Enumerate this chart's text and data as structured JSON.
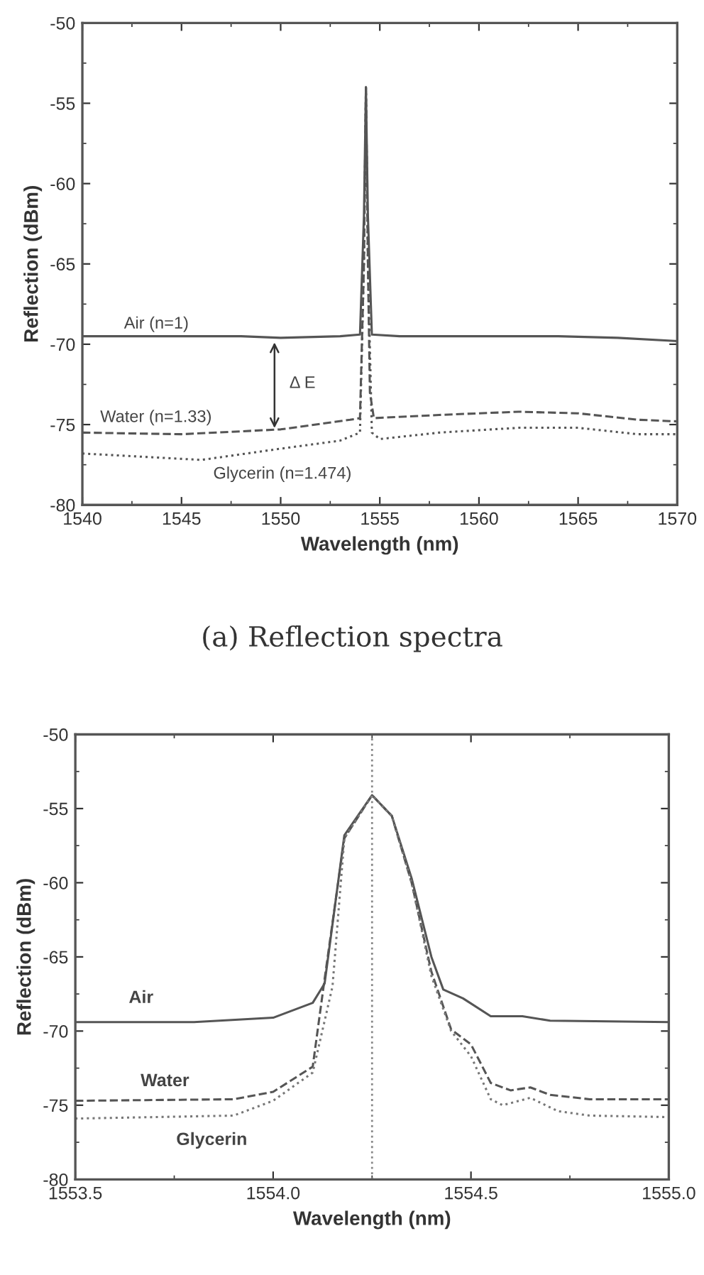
{
  "chart_data": [
    {
      "type": "line",
      "xlabel": "Wavelength (nm)",
      "ylabel": "Reflection (dBm)",
      "xlim": [
        1540,
        1570
      ],
      "xticks": [
        1540,
        1545,
        1550,
        1555,
        1560,
        1565,
        1570
      ],
      "ylim": [
        -80,
        -50
      ],
      "yticks": [
        -80,
        -75,
        -70,
        -65,
        -60,
        -55,
        -50
      ],
      "grid": false,
      "legend": false,
      "marker": "none",
      "series": [
        {
          "name": "Air (n=1)",
          "color": "#555555",
          "line_style": "solid",
          "x": [
            1540,
            1548,
            1550,
            1553,
            1554.0,
            1554.2,
            1554.3,
            1554.4,
            1554.6,
            1556,
            1564,
            1567,
            1570
          ],
          "values": [
            -69.5,
            -69.5,
            -69.6,
            -69.5,
            -69.4,
            -62,
            -54,
            -62,
            -69.4,
            -69.5,
            -69.5,
            -69.6,
            -69.8
          ]
        },
        {
          "name": "Water (n=1.33)",
          "color": "#555555",
          "line_style": "dashed",
          "x": [
            1540,
            1545,
            1550,
            1553.5,
            1554.0,
            1554.2,
            1554.3,
            1554.4,
            1554.5,
            1554.7,
            1558,
            1562,
            1565,
            1568,
            1570
          ],
          "values": [
            -75.5,
            -75.6,
            -75.3,
            -74.7,
            -74.6,
            -65,
            -54,
            -65,
            -73,
            -74.6,
            -74.4,
            -74.2,
            -74.3,
            -74.7,
            -74.8
          ]
        },
        {
          "name": "Glycerin (n=1.474)",
          "color": "#555555",
          "line_style": "dotted",
          "x": [
            1540,
            1543,
            1546,
            1550,
            1553,
            1554.0,
            1554.2,
            1554.3,
            1554.4,
            1554.6,
            1555,
            1558,
            1562,
            1565,
            1568,
            1570
          ],
          "values": [
            -76.8,
            -77.0,
            -77.2,
            -76.5,
            -76.0,
            -75.5,
            -65,
            -54,
            -65,
            -75.5,
            -75.9,
            -75.5,
            -75.2,
            -75.2,
            -75.6,
            -75.6
          ]
        }
      ],
      "annotations": [
        "Δ E",
        "(a) Reflection spectra"
      ]
    },
    {
      "type": "line",
      "xlabel": "Wavelength (nm)",
      "ylabel": "Reflection (dBm)",
      "xlim": [
        1553.5,
        1555.0
      ],
      "xticks": [
        {
          "value": 1553.5,
          "label": "1553.5"
        },
        {
          "value": 1554.0,
          "label": "1554.0"
        },
        {
          "value": 1554.5,
          "label": "1554.5"
        },
        {
          "value": 1555.0,
          "label": "1555.0"
        }
      ],
      "ylim": [
        -80,
        -50
      ],
      "yticks": [
        -80,
        -75,
        -70,
        -65,
        -60,
        -55,
        -50
      ],
      "grid": false,
      "legend": false,
      "marker": "none",
      "ref_lines": [
        {
          "axis": "x",
          "value": 1554.25,
          "color": "#888888",
          "line_style": "dotted"
        }
      ],
      "series": [
        {
          "name": "Air",
          "color": "#555555",
          "line_style": "solid",
          "x": [
            1553.5,
            1553.8,
            1554.0,
            1554.1,
            1554.13,
            1554.18,
            1554.25,
            1554.3,
            1554.35,
            1554.4,
            1554.43,
            1554.48,
            1554.55,
            1554.63,
            1554.7,
            1555.0
          ],
          "values": [
            -69.4,
            -69.4,
            -69.1,
            -68.1,
            -66.8,
            -56.8,
            -54.1,
            -55.5,
            -59.7,
            -65,
            -67.2,
            -67.8,
            -69.0,
            -69.0,
            -69.3,
            -69.4
          ]
        },
        {
          "name": "Water",
          "color": "#555555",
          "line_style": "dashed",
          "x": [
            1553.5,
            1553.9,
            1554.0,
            1554.1,
            1554.13,
            1554.18,
            1554.25,
            1554.3,
            1554.35,
            1554.4,
            1554.45,
            1554.5,
            1554.55,
            1554.6,
            1554.65,
            1554.7,
            1554.8,
            1555.0
          ],
          "values": [
            -74.7,
            -74.6,
            -74.1,
            -72.4,
            -66.5,
            -57,
            -54.1,
            -55.5,
            -60,
            -66,
            -69.9,
            -70.9,
            -73.5,
            -74.0,
            -73.8,
            -74.3,
            -74.6,
            -74.6
          ]
        },
        {
          "name": "Glycerin",
          "color": "#777777",
          "line_style": "dotted",
          "x": [
            1553.5,
            1553.9,
            1554.0,
            1554.1,
            1554.15,
            1554.18,
            1554.25,
            1554.3,
            1554.35,
            1554.4,
            1554.45,
            1554.5,
            1554.55,
            1554.58,
            1554.65,
            1554.72,
            1554.8,
            1555.0
          ],
          "values": [
            -75.9,
            -75.7,
            -74.7,
            -72.8,
            -67,
            -57,
            -54.1,
            -55.5,
            -60,
            -66.3,
            -70.0,
            -71.7,
            -74.6,
            -75.0,
            -74.5,
            -75.4,
            -75.7,
            -75.8
          ]
        }
      ]
    }
  ]
}
